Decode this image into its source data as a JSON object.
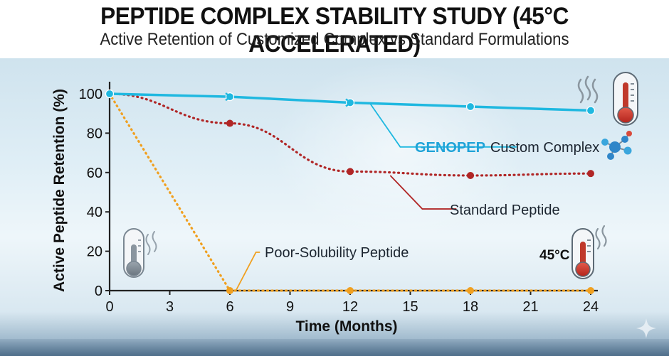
{
  "title": "PEPTIDE COMPLEX STABILITY STUDY (45°C ACCELERATED)",
  "subtitle": "Active Retention of Customized Complex vs Standard Formulations",
  "chart_data": {
    "type": "line",
    "title": "PEPTIDE COMPLEX STABILITY STUDY (45°C ACCELERATED)",
    "subtitle": "Active Retention of Customized Complex vs Standard Formulations",
    "xlabel": "Time (Months)",
    "ylabel": "Active Peptide Retention (%)",
    "xlim": [
      0,
      24
    ],
    "ylim": [
      0,
      100
    ],
    "x_ticks": [
      "0",
      "3",
      "6",
      "9",
      "12",
      "15",
      "18",
      "21",
      "24"
    ],
    "y_ticks": [
      "0",
      "20",
      "40",
      "60",
      "80",
      "100"
    ],
    "grid": false,
    "series": [
      {
        "name_brand": "GENOPEP",
        "name_rest": "Custom Complex",
        "color": "#1fb8e0",
        "style": "solid",
        "points": [
          [
            0,
            100
          ],
          [
            6,
            98.5
          ],
          [
            12,
            95.5
          ],
          [
            18,
            93.5
          ],
          [
            24,
            91.5
          ]
        ]
      },
      {
        "name": "Standard Peptide",
        "color": "#b02626",
        "style": "dotted",
        "points": [
          [
            0,
            100
          ],
          [
            6,
            85
          ],
          [
            12,
            60.5
          ],
          [
            18,
            58.5
          ],
          [
            24,
            59.5
          ]
        ]
      },
      {
        "name": "Poor-Solubility Peptide",
        "color": "#f0a020",
        "style": "dotted",
        "points": [
          [
            0,
            100
          ],
          [
            6,
            0
          ],
          [
            12,
            0
          ],
          [
            18,
            0
          ],
          [
            24,
            0
          ]
        ]
      }
    ],
    "annotations": {
      "temperature": "45°C"
    }
  },
  "icons": [
    "thermometer-hot-icon",
    "thermometer-cool-icon",
    "molecule-icon",
    "sparkle-icon"
  ]
}
